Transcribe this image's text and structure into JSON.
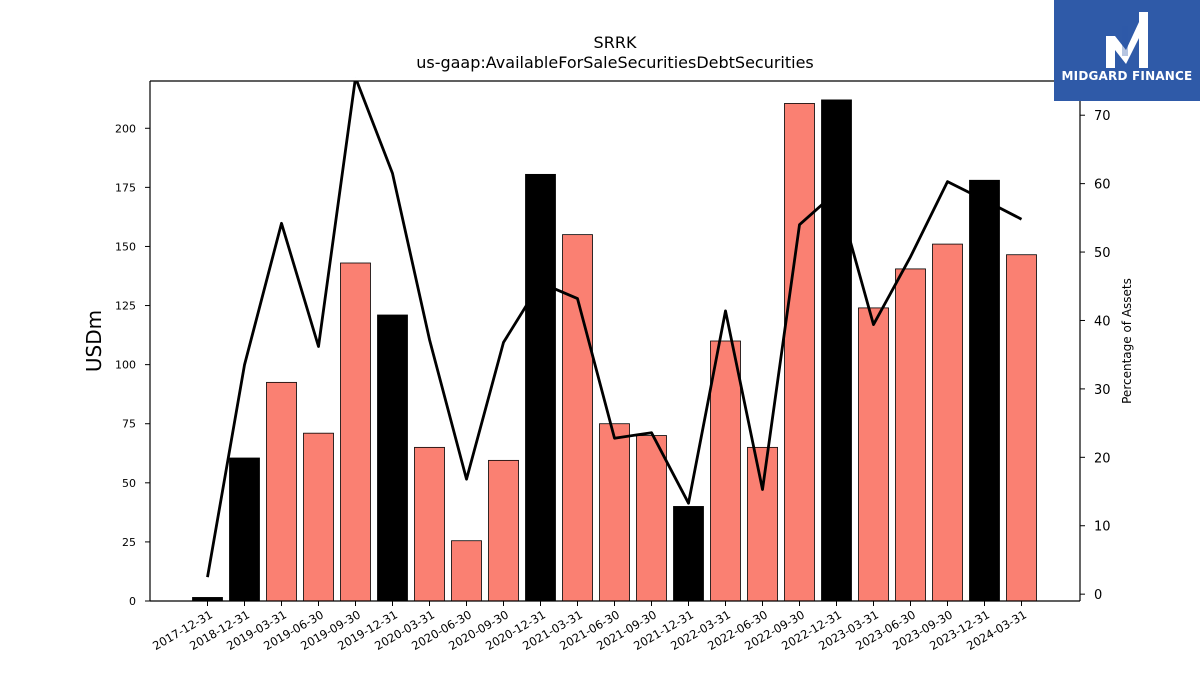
{
  "logo": {
    "text": "MIDGARD FINANCE",
    "color": "#2f5aa8"
  },
  "chart_data": {
    "type": "bar",
    "title": "SRRK",
    "subtitle": "us-gaap:AvailableForSaleSecuritiesDebtSecurities",
    "ylabel": "USDm",
    "y2label": "Percentage of Assets",
    "ylim": [
      0,
      220
    ],
    "y2lim": [
      -1,
      75
    ],
    "yticks": [
      0,
      25,
      50,
      75,
      100,
      125,
      150,
      175,
      200
    ],
    "y2ticks": [
      0,
      10,
      20,
      30,
      40,
      50,
      60,
      70
    ],
    "categories": [
      "2017-12-31",
      "2018-12-31",
      "2019-03-31",
      "2019-06-30",
      "2019-09-30",
      "2019-12-31",
      "2020-03-31",
      "2020-06-30",
      "2020-09-30",
      "2020-12-31",
      "2021-03-31",
      "2021-06-30",
      "2021-09-30",
      "2021-12-31",
      "2022-03-31",
      "2022-06-30",
      "2022-09-30",
      "2022-12-31",
      "2023-03-31",
      "2023-06-30",
      "2023-09-30",
      "2023-12-31",
      "2024-03-31"
    ],
    "series": [
      {
        "type": "bar",
        "values": [
          1.5,
          60.5,
          92.5,
          71,
          143,
          121,
          65,
          25.5,
          59.5,
          180.5,
          155,
          75,
          70,
          40,
          110,
          65,
          210.5,
          212,
          124,
          140.5,
          151,
          178,
          146.5
        ],
        "colors": [
          "#000000",
          "#000000",
          "#fa8072",
          "#fa8072",
          "#fa8072",
          "#000000",
          "#fa8072",
          "#fa8072",
          "#fa8072",
          "#000000",
          "#fa8072",
          "#fa8072",
          "#fa8072",
          "#000000",
          "#fa8072",
          "#fa8072",
          "#fa8072",
          "#000000",
          "#fa8072",
          "#fa8072",
          "#fa8072",
          "#000000",
          "#fa8072"
        ]
      },
      {
        "type": "line",
        "axis": "right",
        "color": "#000000",
        "values": [
          2.5,
          33.5,
          54.2,
          36.2,
          75.5,
          61.5,
          37.2,
          16.8,
          36.8,
          45.5,
          43.2,
          22.8,
          23.6,
          13.3,
          41.4,
          15.3,
          54.0,
          58.8,
          39.4,
          49.3,
          60.3,
          57.6,
          54.8
        ]
      }
    ],
    "grid": false,
    "legend": "none"
  }
}
